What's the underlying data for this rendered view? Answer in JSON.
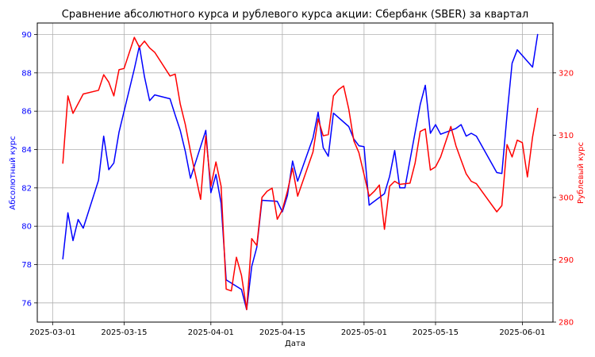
{
  "chart_data": {
    "type": "line",
    "title": "Сравнение абсолютного курса и рублевого курса акции: Сбербанк (SBER) за квартал",
    "xlabel": "Дата",
    "ylabel_left": "Абсолютный курс",
    "ylabel_right": "Рублевый курс",
    "grid": true,
    "colors": {
      "left_axis": "#0000ff",
      "right_axis": "#ff0000",
      "grid": "#b0b0b0"
    },
    "x_ticks": [
      "2025-03-01",
      "2025-03-15",
      "2025-04-01",
      "2025-04-15",
      "2025-05-01",
      "2025-05-15",
      "2025-06-01"
    ],
    "y_left": {
      "ylim": [
        75,
        90.6
      ],
      "ticks": [
        76,
        78,
        80,
        82,
        84,
        86,
        88,
        90
      ]
    },
    "y_right": {
      "ylim": [
        280,
        328
      ],
      "ticks": [
        280,
        290,
        300,
        310,
        320
      ]
    },
    "series": [
      {
        "axis": "left",
        "color": "#0000ff",
        "points": [
          [
            "2025-03-03",
            78.3
          ],
          [
            "2025-03-04",
            80.7
          ],
          [
            "2025-03-05",
            79.25
          ],
          [
            "2025-03-06",
            80.35
          ],
          [
            "2025-03-07",
            79.9
          ],
          [
            "2025-03-10",
            82.4
          ],
          [
            "2025-03-11",
            84.7
          ],
          [
            "2025-03-12",
            82.95
          ],
          [
            "2025-03-13",
            83.3
          ],
          [
            "2025-03-14",
            84.9
          ],
          [
            "2025-03-17",
            88.2
          ],
          [
            "2025-03-18",
            89.4
          ],
          [
            "2025-03-19",
            87.8
          ],
          [
            "2025-03-20",
            86.55
          ],
          [
            "2025-03-21",
            86.85
          ],
          [
            "2025-03-24",
            86.65
          ],
          [
            "2025-03-25",
            85.8
          ],
          [
            "2025-03-26",
            85.0
          ],
          [
            "2025-03-27",
            83.9
          ],
          [
            "2025-03-28",
            82.5
          ],
          [
            "2025-03-31",
            85.0
          ],
          [
            "2025-04-01",
            81.75
          ],
          [
            "2025-04-02",
            82.7
          ],
          [
            "2025-04-03",
            81.2
          ],
          [
            "2025-04-04",
            77.2
          ],
          [
            "2025-04-07",
            76.7
          ],
          [
            "2025-04-08",
            75.65
          ],
          [
            "2025-04-09",
            77.9
          ],
          [
            "2025-04-10",
            78.9
          ],
          [
            "2025-04-11",
            81.35
          ],
          [
            "2025-04-14",
            81.3
          ],
          [
            "2025-04-15",
            80.75
          ],
          [
            "2025-04-16",
            81.6
          ],
          [
            "2025-04-17",
            83.4
          ],
          [
            "2025-04-18",
            82.35
          ],
          [
            "2025-04-21",
            84.6
          ],
          [
            "2025-04-22",
            85.95
          ],
          [
            "2025-04-23",
            84.1
          ],
          [
            "2025-04-24",
            83.65
          ],
          [
            "2025-04-25",
            85.9
          ],
          [
            "2025-04-28",
            85.2
          ],
          [
            "2025-04-29",
            84.55
          ],
          [
            "2025-04-30",
            84.2
          ],
          [
            "2025-05-01",
            84.15
          ],
          [
            "2025-05-02",
            81.1
          ],
          [
            "2025-05-05",
            81.7
          ],
          [
            "2025-05-06",
            82.6
          ],
          [
            "2025-05-07",
            83.95
          ],
          [
            "2025-05-08",
            82.0
          ],
          [
            "2025-05-09",
            82.0
          ],
          [
            "2025-05-12",
            86.35
          ],
          [
            "2025-05-13",
            87.35
          ],
          [
            "2025-05-14",
            84.85
          ],
          [
            "2025-05-15",
            85.3
          ],
          [
            "2025-05-16",
            84.8
          ],
          [
            "2025-05-19",
            85.1
          ],
          [
            "2025-05-20",
            85.3
          ],
          [
            "2025-05-21",
            84.7
          ],
          [
            "2025-05-22",
            84.85
          ],
          [
            "2025-05-23",
            84.7
          ],
          [
            "2025-05-27",
            82.8
          ],
          [
            "2025-05-28",
            82.75
          ],
          [
            "2025-05-29",
            85.8
          ],
          [
            "2025-05-30",
            88.5
          ],
          [
            "2025-05-31",
            89.2
          ],
          [
            "2025-06-03",
            88.3
          ],
          [
            "2025-06-04",
            90.0
          ]
        ]
      },
      {
        "axis": "right",
        "color": "#ff0000",
        "points": [
          [
            "2025-03-03",
            305.5
          ],
          [
            "2025-03-04",
            316.3
          ],
          [
            "2025-03-05",
            313.5
          ],
          [
            "2025-03-07",
            316.6
          ],
          [
            "2025-03-10",
            317.2
          ],
          [
            "2025-03-11",
            319.7
          ],
          [
            "2025-03-12",
            318.5
          ],
          [
            "2025-03-13",
            316.3
          ],
          [
            "2025-03-14",
            320.5
          ],
          [
            "2025-03-15",
            320.7
          ],
          [
            "2025-03-17",
            325.7
          ],
          [
            "2025-03-18",
            324.1
          ],
          [
            "2025-03-19",
            325.1
          ],
          [
            "2025-03-20",
            324.0
          ],
          [
            "2025-03-21",
            323.3
          ],
          [
            "2025-03-24",
            319.5
          ],
          [
            "2025-03-25",
            319.8
          ],
          [
            "2025-03-26",
            315.0
          ],
          [
            "2025-03-27",
            311.7
          ],
          [
            "2025-03-28",
            307.4
          ],
          [
            "2025-03-30",
            299.7
          ],
          [
            "2025-03-31",
            309.9
          ],
          [
            "2025-04-01",
            301.8
          ],
          [
            "2025-04-02",
            305.7
          ],
          [
            "2025-04-03",
            301.8
          ],
          [
            "2025-04-04",
            285.3
          ],
          [
            "2025-04-05",
            285.0
          ],
          [
            "2025-04-06",
            290.4
          ],
          [
            "2025-04-07",
            287.5
          ],
          [
            "2025-04-08",
            282.0
          ],
          [
            "2025-04-09",
            293.4
          ],
          [
            "2025-04-10",
            292.3
          ],
          [
            "2025-04-11",
            300.0
          ],
          [
            "2025-04-12",
            301.0
          ],
          [
            "2025-04-13",
            301.5
          ],
          [
            "2025-04-14",
            296.5
          ],
          [
            "2025-04-15",
            298.0
          ],
          [
            "2025-04-16",
            301.0
          ],
          [
            "2025-04-17",
            304.7
          ],
          [
            "2025-04-18",
            300.2
          ],
          [
            "2025-04-21",
            307.3
          ],
          [
            "2025-04-22",
            312.6
          ],
          [
            "2025-04-23",
            309.9
          ],
          [
            "2025-04-24",
            310.1
          ],
          [
            "2025-04-25",
            316.3
          ],
          [
            "2025-04-26",
            317.3
          ],
          [
            "2025-04-27",
            317.9
          ],
          [
            "2025-04-28",
            314.2
          ],
          [
            "2025-04-29",
            309.1
          ],
          [
            "2025-04-30",
            307.2
          ],
          [
            "2025-05-02",
            300.2
          ],
          [
            "2025-05-03",
            301.0
          ],
          [
            "2025-05-04",
            302.0
          ],
          [
            "2025-05-05",
            294.9
          ],
          [
            "2025-05-06",
            301.8
          ],
          [
            "2025-05-07",
            302.6
          ],
          [
            "2025-05-08",
            302.1
          ],
          [
            "2025-05-10",
            302.3
          ],
          [
            "2025-05-11",
            305.5
          ],
          [
            "2025-05-12",
            310.6
          ],
          [
            "2025-05-13",
            311.0
          ],
          [
            "2025-05-14",
            304.4
          ],
          [
            "2025-05-15",
            304.9
          ],
          [
            "2025-05-16",
            306.5
          ],
          [
            "2025-05-18",
            311.4
          ],
          [
            "2025-05-19",
            308.3
          ],
          [
            "2025-05-20",
            306.0
          ],
          [
            "2025-05-21",
            303.8
          ],
          [
            "2025-05-22",
            302.6
          ],
          [
            "2025-05-23",
            302.2
          ],
          [
            "2025-05-27",
            297.7
          ],
          [
            "2025-05-28",
            298.7
          ],
          [
            "2025-05-29",
            308.5
          ],
          [
            "2025-05-30",
            306.5
          ],
          [
            "2025-05-31",
            309.2
          ],
          [
            "2025-06-01",
            308.8
          ],
          [
            "2025-06-02",
            303.3
          ],
          [
            "2025-06-03",
            309.7
          ],
          [
            "2025-06-04",
            314.3
          ]
        ]
      }
    ]
  }
}
